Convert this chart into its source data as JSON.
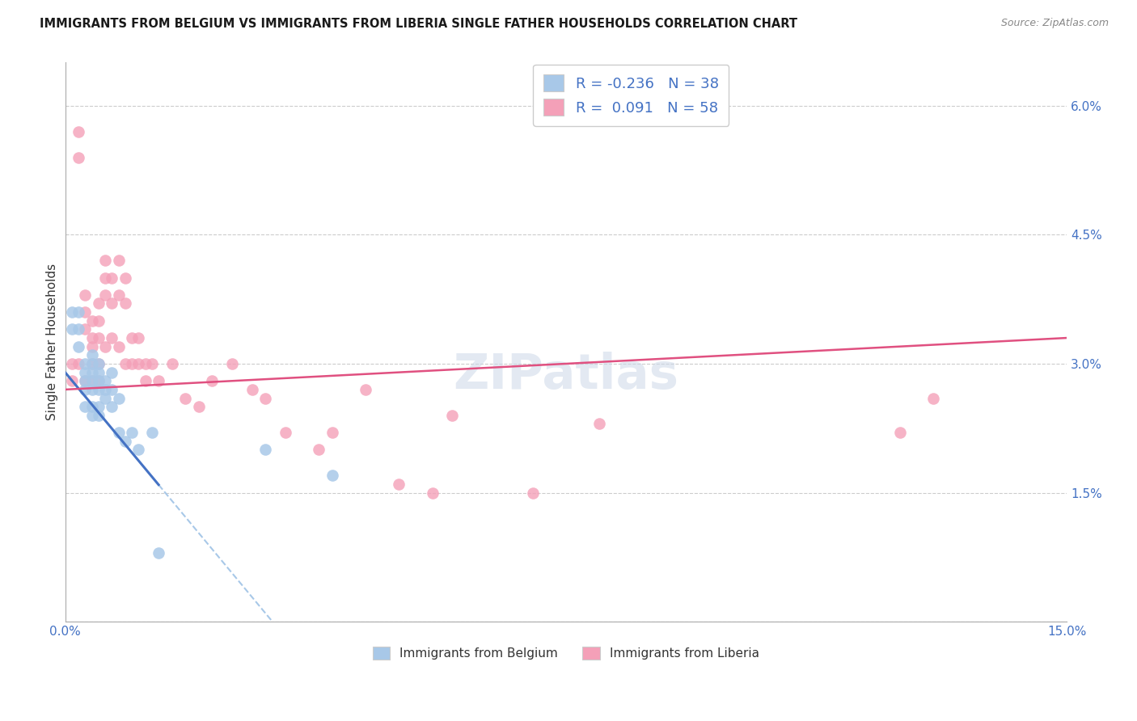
{
  "title": "IMMIGRANTS FROM BELGIUM VS IMMIGRANTS FROM LIBERIA SINGLE FATHER HOUSEHOLDS CORRELATION CHART",
  "source": "Source: ZipAtlas.com",
  "ylabel": "Single Father Households",
  "xlim": [
    0,
    0.15
  ],
  "ylim": [
    0,
    0.065
  ],
  "xticks": [
    0.0,
    0.03,
    0.06,
    0.09,
    0.12,
    0.15
  ],
  "xtick_labels_show": [
    "0.0%",
    "15.0%"
  ],
  "yticks": [
    0.0,
    0.015,
    0.03,
    0.045,
    0.06
  ],
  "ytick_labels": [
    "",
    "1.5%",
    "3.0%",
    "4.5%",
    "6.0%"
  ],
  "legend_r_belgium": "-0.236",
  "legend_n_belgium": "38",
  "legend_r_liberia": "0.091",
  "legend_n_liberia": "58",
  "belgium_color": "#a8c8e8",
  "liberia_color": "#f4a0b8",
  "trend_belgium_solid_color": "#4472c4",
  "trend_belgium_dashed_color": "#a8c8e8",
  "trend_liberia_color": "#e05080",
  "watermark": "ZIPatlas",
  "belgium_x": [
    0.001,
    0.001,
    0.002,
    0.002,
    0.002,
    0.003,
    0.003,
    0.003,
    0.003,
    0.003,
    0.004,
    0.004,
    0.004,
    0.004,
    0.004,
    0.004,
    0.004,
    0.005,
    0.005,
    0.005,
    0.005,
    0.005,
    0.005,
    0.006,
    0.006,
    0.006,
    0.007,
    0.007,
    0.007,
    0.008,
    0.008,
    0.009,
    0.01,
    0.011,
    0.013,
    0.014,
    0.03,
    0.04
  ],
  "belgium_y": [
    0.036,
    0.034,
    0.036,
    0.034,
    0.032,
    0.03,
    0.029,
    0.028,
    0.027,
    0.025,
    0.031,
    0.03,
    0.029,
    0.028,
    0.027,
    0.025,
    0.024,
    0.03,
    0.029,
    0.028,
    0.027,
    0.025,
    0.024,
    0.028,
    0.027,
    0.026,
    0.029,
    0.027,
    0.025,
    0.026,
    0.022,
    0.021,
    0.022,
    0.02,
    0.022,
    0.008,
    0.02,
    0.017
  ],
  "liberia_x": [
    0.001,
    0.001,
    0.002,
    0.002,
    0.002,
    0.003,
    0.003,
    0.003,
    0.003,
    0.004,
    0.004,
    0.004,
    0.004,
    0.004,
    0.005,
    0.005,
    0.005,
    0.005,
    0.005,
    0.006,
    0.006,
    0.006,
    0.006,
    0.007,
    0.007,
    0.007,
    0.008,
    0.008,
    0.008,
    0.009,
    0.009,
    0.009,
    0.01,
    0.01,
    0.011,
    0.011,
    0.012,
    0.012,
    0.013,
    0.014,
    0.016,
    0.018,
    0.02,
    0.022,
    0.025,
    0.028,
    0.03,
    0.033,
    0.038,
    0.04,
    0.045,
    0.05,
    0.055,
    0.058,
    0.07,
    0.08,
    0.125,
    0.13
  ],
  "liberia_y": [
    0.03,
    0.028,
    0.057,
    0.054,
    0.03,
    0.038,
    0.036,
    0.034,
    0.028,
    0.035,
    0.033,
    0.032,
    0.03,
    0.028,
    0.037,
    0.035,
    0.033,
    0.03,
    0.028,
    0.042,
    0.04,
    0.038,
    0.032,
    0.04,
    0.037,
    0.033,
    0.042,
    0.038,
    0.032,
    0.04,
    0.037,
    0.03,
    0.033,
    0.03,
    0.033,
    0.03,
    0.03,
    0.028,
    0.03,
    0.028,
    0.03,
    0.026,
    0.025,
    0.028,
    0.03,
    0.027,
    0.026,
    0.022,
    0.02,
    0.022,
    0.027,
    0.016,
    0.015,
    0.024,
    0.015,
    0.023,
    0.022,
    0.026
  ],
  "trend_bel_x0": 0.0,
  "trend_bel_y0": 0.029,
  "trend_bel_x1": 0.015,
  "trend_bel_y1": 0.015,
  "trend_bel_solid_end": 0.014,
  "trend_bel_dashed_start": 0.014,
  "trend_bel_dashed_end": 0.15,
  "trend_lib_x0": 0.0,
  "trend_lib_y0": 0.027,
  "trend_lib_x1": 0.15,
  "trend_lib_y1": 0.033
}
